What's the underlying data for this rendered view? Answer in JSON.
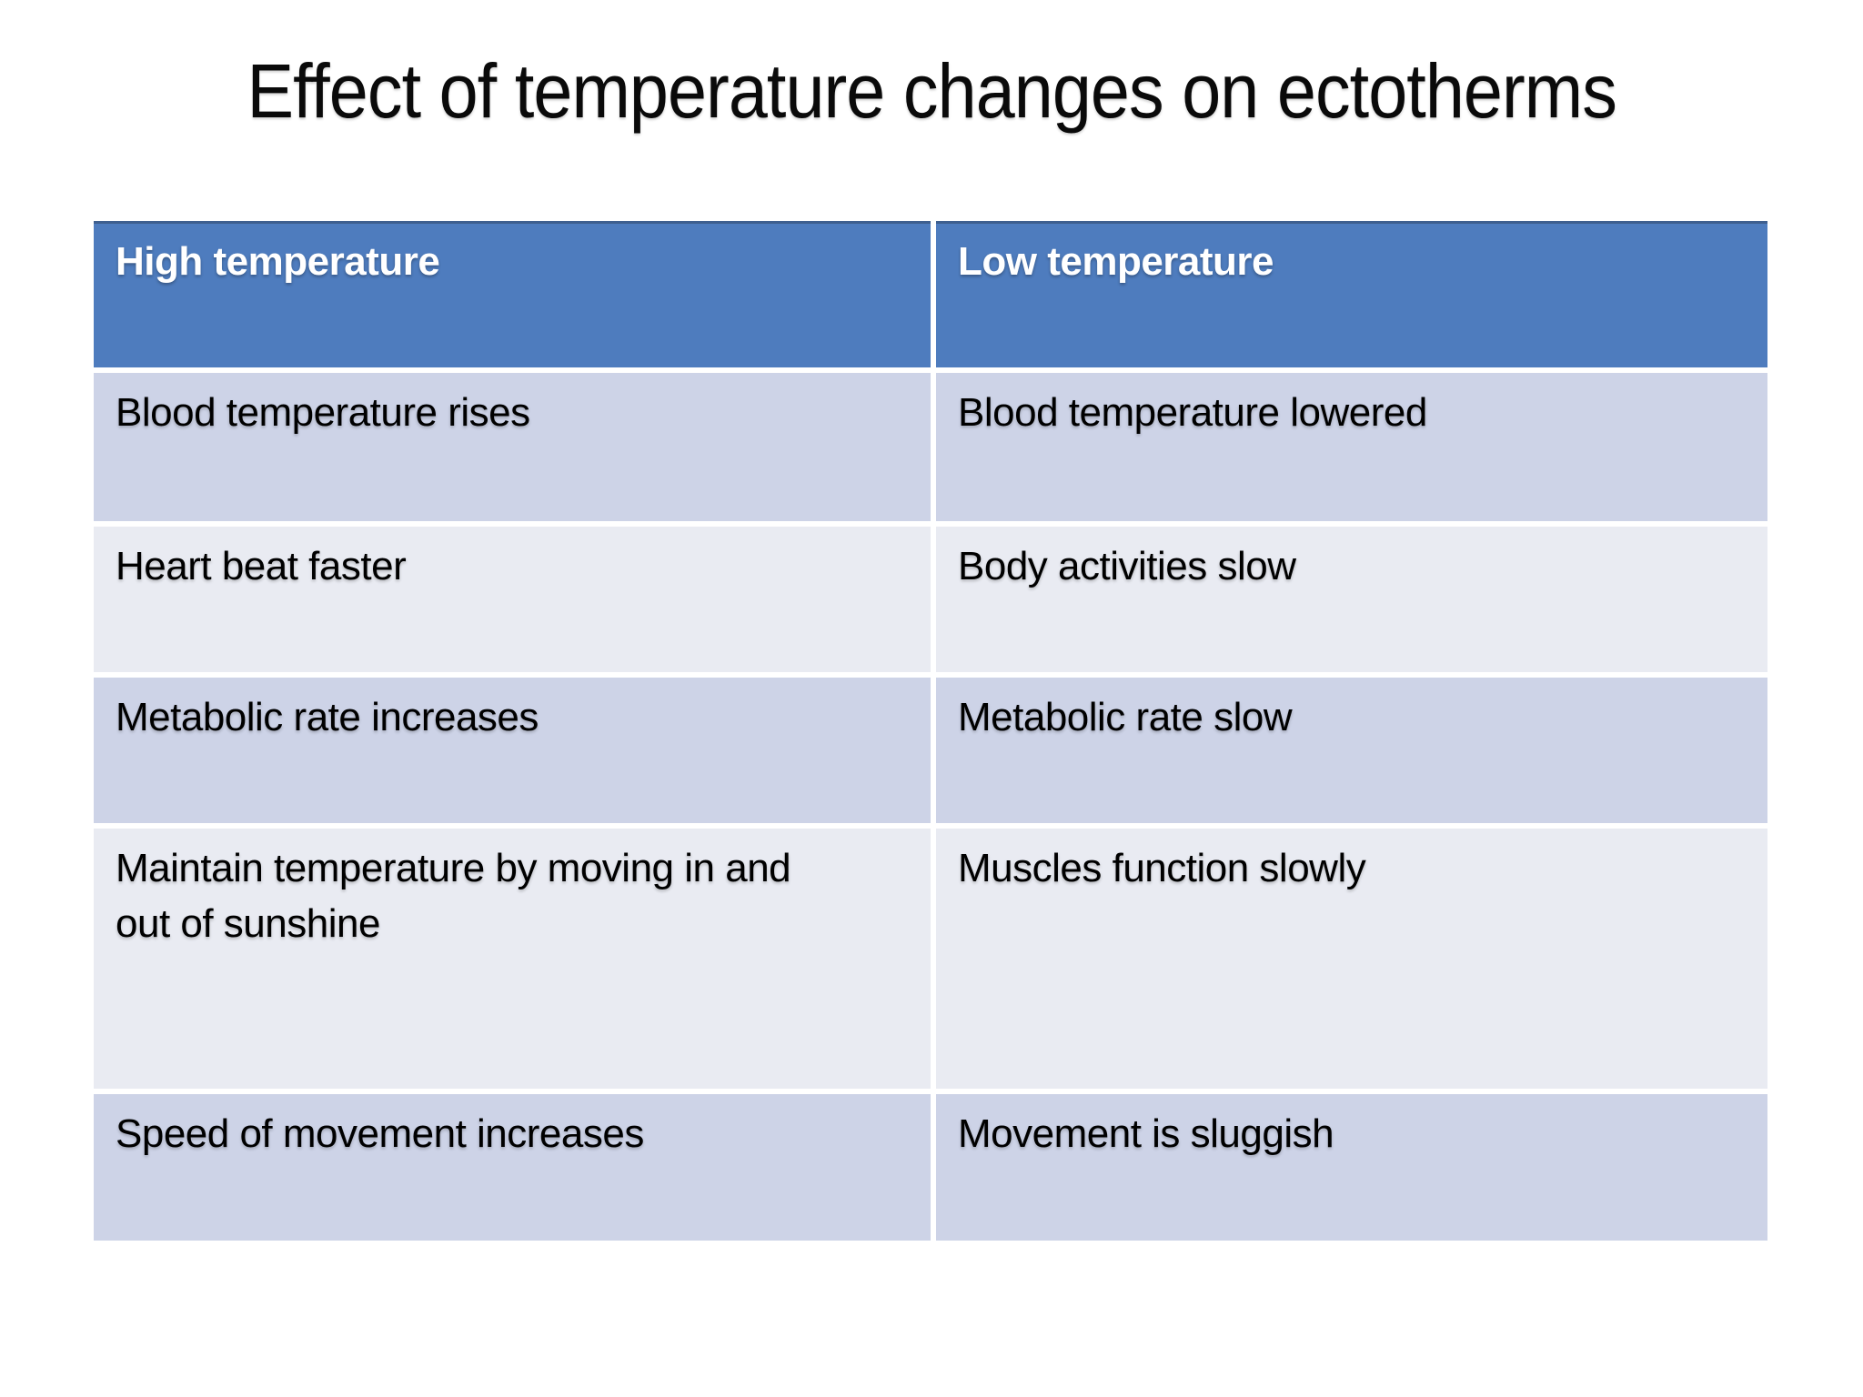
{
  "slide": {
    "title": "Effect of temperature changes on ectotherms",
    "background": "#FFFFFF"
  },
  "table": {
    "headers": [
      "High temperature",
      "Low temperature"
    ],
    "rows": [
      [
        "Blood temperature rises",
        "Blood temperature lowered"
      ],
      [
        "Heart beat faster",
        "Body activities slow"
      ],
      [
        "Metabolic rate increases",
        "Metabolic rate slow"
      ],
      [
        "Maintain temperature by moving in and out of sunshine",
        "Muscles function slowly"
      ],
      [
        "Speed of movement increases",
        "Movement is sluggish"
      ]
    ],
    "colors": {
      "header_bg": "#4E7CBE",
      "header_top_border": "#3E5F8F",
      "header_text": "#FFFFFF",
      "row_odd_bg": "#CDD3E7",
      "row_even_bg": "#E9EBF2",
      "body_text": "#000000",
      "grid_gap": "#FFFFFF"
    }
  }
}
